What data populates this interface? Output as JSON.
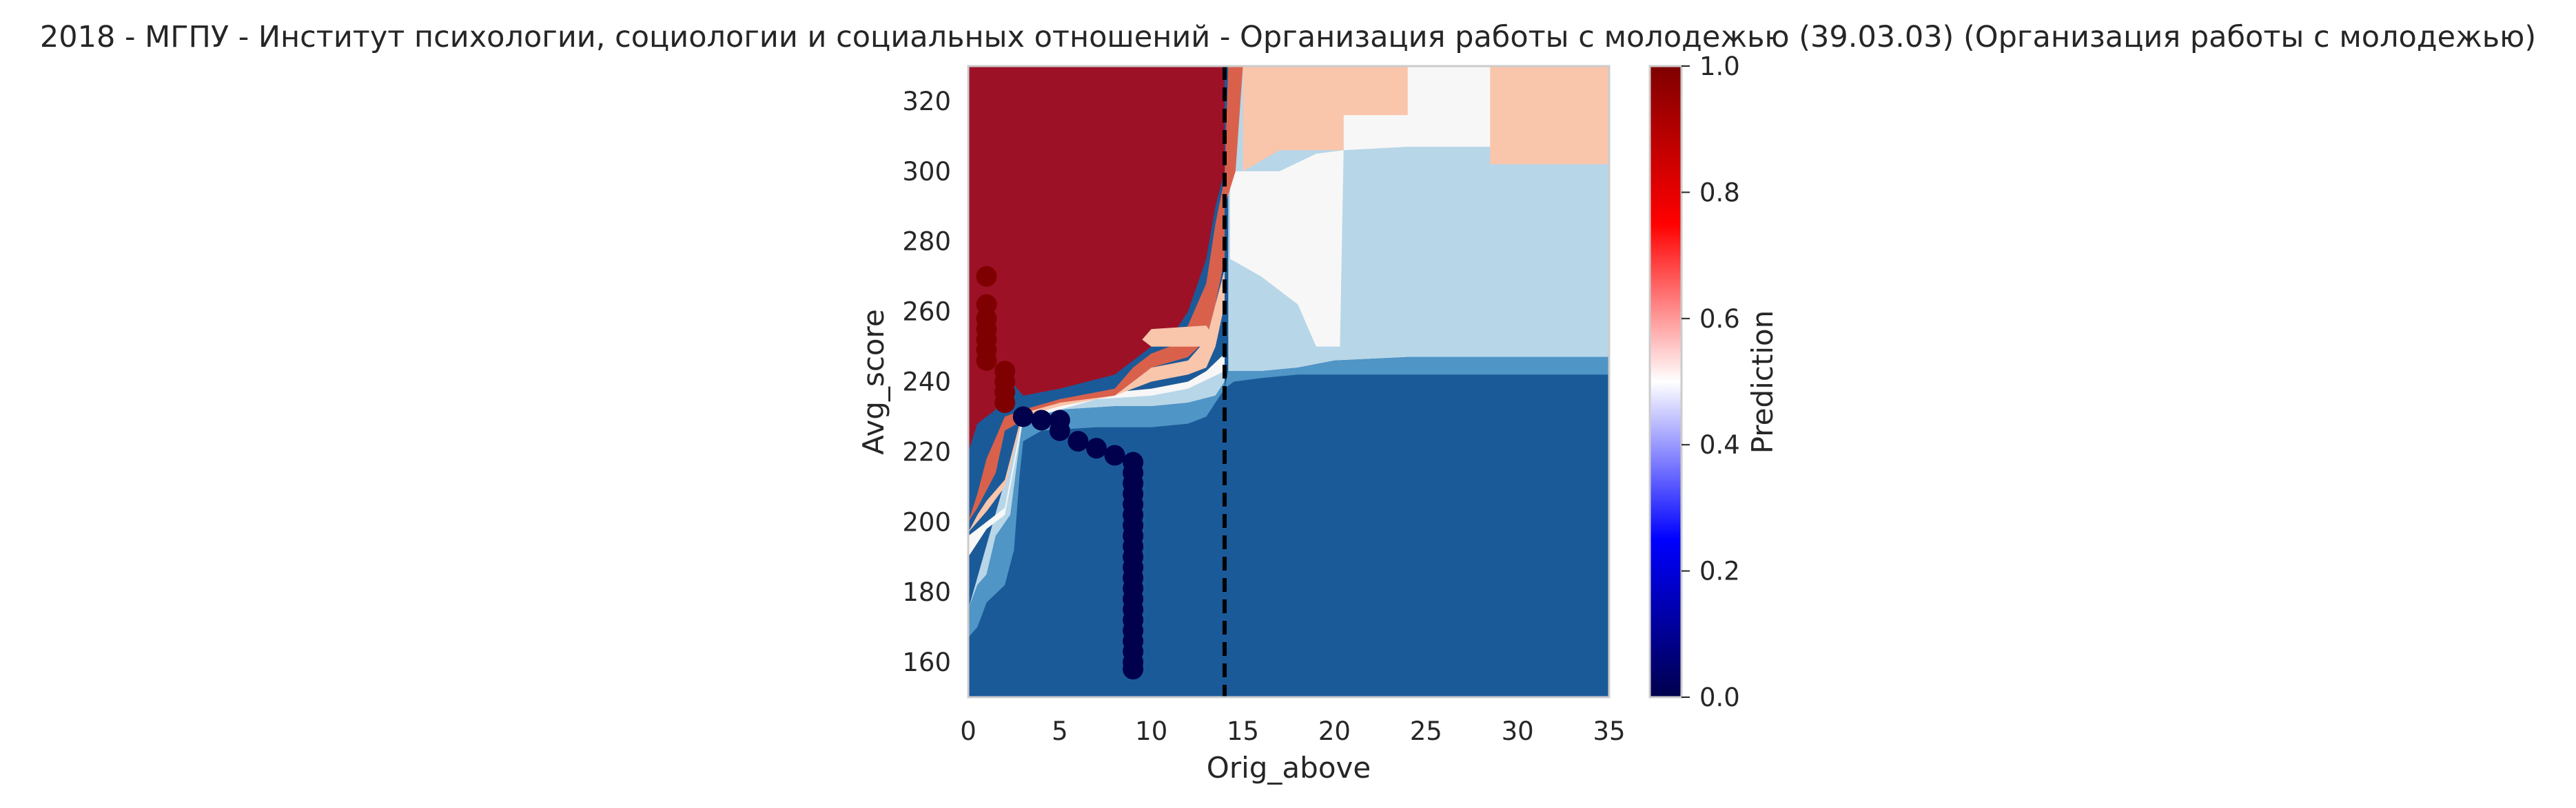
{
  "chart_data": {
    "type": "heatmap",
    "title": "2018 - МГПУ - Институт психологии, социологии и социальных отношений - Организация работы с молодежью (39.03.03) (Организация работы с молодежью)",
    "xlabel": "Orig_above",
    "ylabel": "Avg_score",
    "xlim": [
      0,
      35
    ],
    "ylim": [
      150,
      330
    ],
    "x_ticks": [
      "0",
      "5",
      "10",
      "15",
      "20",
      "25",
      "30",
      "35"
    ],
    "y_ticks": [
      "160",
      "180",
      "200",
      "220",
      "240",
      "260",
      "280",
      "300",
      "320"
    ],
    "grid": false,
    "colorbar": {
      "label": "Prediction",
      "range": [
        0,
        1
      ],
      "ticks": [
        "0.0",
        "0.2",
        "0.4",
        "0.6",
        "0.8",
        "1.0"
      ],
      "colormap": "seismic"
    },
    "contour_levels": [
      0.0,
      0.125,
      0.25,
      0.375,
      0.5,
      0.625,
      0.75,
      0.875,
      1.0
    ],
    "vertical_line": {
      "x": 14,
      "style": "dashed",
      "color": "#000000"
    },
    "series": [
      {
        "label_value": 1,
        "color": "#7f0000",
        "points": [
          [
            1,
            270
          ],
          [
            1,
            262
          ],
          [
            1,
            258
          ],
          [
            1,
            255
          ],
          [
            1,
            252
          ],
          [
            1,
            249
          ],
          [
            1,
            246
          ],
          [
            2,
            243
          ],
          [
            2,
            240
          ],
          [
            2,
            237
          ],
          [
            2,
            234
          ]
        ]
      },
      {
        "label_value": 0,
        "color": "#00004c",
        "points": [
          [
            3,
            230
          ],
          [
            4,
            229
          ],
          [
            5,
            229
          ],
          [
            5,
            226
          ],
          [
            6,
            223
          ],
          [
            7,
            221
          ],
          [
            8,
            219
          ],
          [
            9,
            217
          ],
          [
            9,
            214
          ],
          [
            9,
            211
          ],
          [
            9,
            208
          ],
          [
            9,
            205
          ],
          [
            9,
            202
          ],
          [
            9,
            199
          ],
          [
            9,
            196
          ],
          [
            9,
            193
          ],
          [
            9,
            190
          ],
          [
            9,
            187
          ],
          [
            9,
            184
          ],
          [
            9,
            181
          ],
          [
            9,
            178
          ],
          [
            9,
            175
          ],
          [
            9,
            172
          ],
          [
            9,
            169
          ],
          [
            9,
            166
          ],
          [
            9,
            163
          ],
          [
            9,
            160
          ],
          [
            9,
            158
          ]
        ]
      }
    ],
    "regions": [
      {
        "name": "bg",
        "value": 0.1,
        "color": "#1b5a99",
        "poly": [
          [
            0,
            150
          ],
          [
            35,
            150
          ],
          [
            35,
            330
          ],
          [
            0,
            330
          ]
        ]
      },
      {
        "name": "upper-right-light-blue",
        "value": 0.35,
        "color": "#b7d6e8",
        "poly": [
          [
            14.2,
            243
          ],
          [
            16,
            243
          ],
          [
            18,
            244
          ],
          [
            20,
            246
          ],
          [
            24,
            247
          ],
          [
            35,
            247
          ],
          [
            35,
            330
          ],
          [
            14.2,
            330
          ]
        ]
      },
      {
        "name": "upper-right-mid-blue-band",
        "value": 0.3,
        "color": "#4f95c6",
        "poly": [
          [
            14,
            238
          ],
          [
            14.5,
            240
          ],
          [
            16,
            241
          ],
          [
            18,
            242
          ],
          [
            20,
            242
          ],
          [
            35,
            242
          ],
          [
            35,
            247
          ],
          [
            24,
            247
          ],
          [
            20,
            246
          ],
          [
            18,
            244
          ],
          [
            16,
            243
          ],
          [
            14.2,
            243
          ]
        ]
      },
      {
        "name": "upper-right-white",
        "value": 0.5,
        "color": "#f7f7f7",
        "poly": [
          [
            20.5,
            306
          ],
          [
            24,
            307
          ],
          [
            35,
            307
          ],
          [
            35,
            330
          ],
          [
            20.5,
            330
          ]
        ]
      },
      {
        "name": "upper-right-white-strip",
        "value": 0.5,
        "color": "#f7f7f7",
        "poly": [
          [
            14.3,
            275
          ],
          [
            16,
            270
          ],
          [
            18,
            262
          ],
          [
            19,
            250
          ],
          [
            20.3,
            250
          ],
          [
            20.5,
            306
          ],
          [
            19,
            305
          ],
          [
            17,
            300
          ],
          [
            15,
            300
          ],
          [
            14.3,
            300
          ]
        ]
      },
      {
        "name": "upper-right-pink",
        "value": 0.625,
        "color": "#f9c5ab",
        "poly": [
          [
            15,
            300
          ],
          [
            17,
            306
          ],
          [
            20.5,
            306
          ],
          [
            20.5,
            316
          ],
          [
            24,
            316
          ],
          [
            24,
            330
          ],
          [
            15,
            330
          ]
        ]
      },
      {
        "name": "upper-right-pink-2",
        "value": 0.625,
        "color": "#f9c5ab",
        "poly": [
          [
            28.5,
            302
          ],
          [
            35,
            302
          ],
          [
            35,
            330
          ],
          [
            28.5,
            330
          ]
        ]
      },
      {
        "name": "left-light-blue",
        "value": 0.35,
        "color": "#b7d6e8",
        "poly": [
          [
            0,
            175
          ],
          [
            0.5,
            182
          ],
          [
            1,
            185
          ],
          [
            1.5,
            196
          ],
          [
            2.3,
            202
          ],
          [
            3,
            230
          ],
          [
            5,
            232
          ],
          [
            8,
            233
          ],
          [
            10,
            233
          ],
          [
            12,
            234
          ],
          [
            13.5,
            236
          ],
          [
            14,
            240
          ],
          [
            14,
            244
          ],
          [
            12,
            240
          ],
          [
            10,
            237
          ],
          [
            7,
            236
          ],
          [
            5,
            234
          ],
          [
            3,
            230
          ]
        ]
      },
      {
        "name": "left-mid-blue",
        "value": 0.3,
        "color": "#4f95c6",
        "poly": [
          [
            0,
            167
          ],
          [
            0.5,
            170
          ],
          [
            1,
            177
          ],
          [
            2,
            182
          ],
          [
            2.5,
            192
          ],
          [
            2.8,
            213
          ],
          [
            3,
            223
          ],
          [
            4,
            226
          ],
          [
            7,
            227
          ],
          [
            10,
            227
          ],
          [
            12,
            228
          ],
          [
            13,
            230
          ],
          [
            14,
            238
          ],
          [
            14,
            240
          ],
          [
            13.5,
            236
          ],
          [
            12,
            234
          ],
          [
            10,
            233
          ],
          [
            8,
            233
          ],
          [
            5,
            232
          ],
          [
            3,
            230
          ],
          [
            2.3,
            202
          ],
          [
            1.5,
            196
          ],
          [
            1,
            185
          ],
          [
            0.5,
            182
          ],
          [
            0,
            175
          ]
        ]
      },
      {
        "name": "left-white",
        "value": 0.5,
        "color": "#f7f7f7",
        "poly": [
          [
            0,
            190
          ],
          [
            0,
            196
          ],
          [
            1,
            200
          ],
          [
            2,
            204
          ],
          [
            3,
            231
          ],
          [
            5,
            235
          ],
          [
            8,
            237
          ],
          [
            10,
            238
          ],
          [
            12,
            240
          ],
          [
            13,
            243
          ],
          [
            14,
            248
          ],
          [
            14,
            243
          ],
          [
            12,
            238
          ],
          [
            10,
            236
          ],
          [
            7,
            235
          ],
          [
            5,
            232
          ],
          [
            3,
            229
          ],
          [
            2,
            202
          ],
          [
            1,
            198
          ]
        ]
      },
      {
        "name": "red-core",
        "value": 0.95,
        "color": "#9d1127",
        "poly": [
          [
            0,
            220
          ],
          [
            0.5,
            228
          ],
          [
            1.5,
            232
          ],
          [
            2,
            242
          ],
          [
            3,
            236
          ],
          [
            5,
            238
          ],
          [
            8,
            242
          ],
          [
            9,
            246
          ],
          [
            10,
            250
          ],
          [
            11,
            252
          ],
          [
            12,
            260
          ],
          [
            13,
            275
          ],
          [
            13.5,
            290
          ],
          [
            14,
            300
          ],
          [
            14,
            330
          ],
          [
            0,
            330
          ]
        ]
      },
      {
        "name": "red-band-mid",
        "value": 0.8,
        "color": "#d9614c",
        "poly": [
          [
            0,
            200
          ],
          [
            0.5,
            208
          ],
          [
            1,
            218
          ],
          [
            1.5,
            224
          ],
          [
            2,
            230
          ],
          [
            3,
            232
          ],
          [
            5,
            235
          ],
          [
            8,
            238
          ],
          [
            9,
            244
          ],
          [
            10,
            248
          ],
          [
            11,
            250
          ],
          [
            12,
            256
          ],
          [
            13,
            268
          ],
          [
            13.5,
            285
          ],
          [
            14,
            298
          ],
          [
            14.2,
            330
          ],
          [
            15,
            330
          ],
          [
            14.6,
            300
          ],
          [
            14,
            290
          ],
          [
            14,
            275
          ],
          [
            13.5,
            262
          ],
          [
            13,
            252
          ],
          [
            12,
            247
          ],
          [
            10,
            244
          ],
          [
            9,
            240
          ],
          [
            8,
            236
          ],
          [
            5,
            234
          ],
          [
            3,
            229
          ],
          [
            2,
            226
          ],
          [
            1.5,
            214
          ],
          [
            0.5,
            204
          ]
        ]
      },
      {
        "name": "pink-band-left",
        "value": 0.625,
        "color": "#f9c5ab",
        "poly": [
          [
            0,
            197
          ],
          [
            0.5,
            202
          ],
          [
            1,
            206
          ],
          [
            2,
            212
          ],
          [
            2.8,
            228
          ],
          [
            3,
            231
          ],
          [
            5,
            234
          ],
          [
            8,
            236
          ],
          [
            9,
            240
          ],
          [
            10,
            244
          ],
          [
            12,
            246
          ],
          [
            13,
            252
          ],
          [
            14,
            272
          ],
          [
            14,
            290
          ],
          [
            14,
            262
          ],
          [
            13.5,
            250
          ],
          [
            13,
            244
          ],
          [
            12,
            242
          ],
          [
            10,
            240
          ],
          [
            8,
            236
          ],
          [
            5,
            233
          ],
          [
            3,
            230
          ],
          [
            2,
            210
          ],
          [
            1,
            203
          ]
        ]
      },
      {
        "name": "pink-islands-10-13",
        "value": 0.625,
        "color": "#f9c5ab",
        "poly": [
          [
            9.5,
            252
          ],
          [
            10,
            255
          ],
          [
            13,
            256
          ],
          [
            13.5,
            252
          ],
          [
            13,
            250
          ],
          [
            10,
            250
          ]
        ]
      }
    ]
  }
}
